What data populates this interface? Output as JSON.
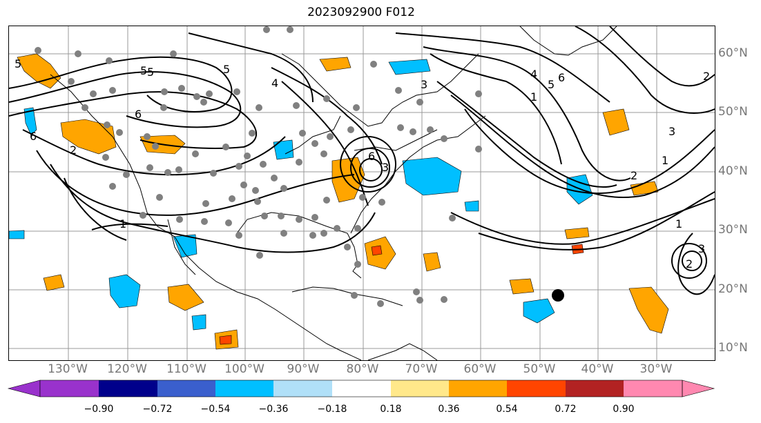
{
  "title": "2023092900 F012",
  "map": {
    "lat_labels": [
      "60°N",
      "50°N",
      "40°N",
      "30°N",
      "20°N",
      "10°N"
    ],
    "lon_labels": [
      "130°W",
      "120°W",
      "110°W",
      "100°W",
      "90°W",
      "80°W",
      "70°W",
      "60°W",
      "50°W",
      "40°W",
      "30°W"
    ],
    "contour_labels": [
      "5",
      "6",
      "4",
      "5",
      "6",
      "5",
      "4",
      "5",
      "6",
      "1",
      "2",
      "1",
      "2",
      "3",
      "1",
      "2",
      "3",
      "3",
      "2",
      "6",
      "1",
      "5",
      "3"
    ],
    "grid_color": "#999999",
    "contour_color": "#000000",
    "point_color": "#808080",
    "marker_color": "#000000"
  },
  "colorbar": {
    "ticks": [
      "−0.90",
      "−0.72",
      "−0.54",
      "−0.36",
      "−0.18",
      "0.18",
      "0.36",
      "0.54",
      "0.72",
      "0.90"
    ],
    "colors": [
      "#9932cc",
      "#00008b",
      "#3a5fcd",
      "#00bfff",
      "#b0e0f8",
      "#ffffff",
      "#ffe88a",
      "#ffa500",
      "#ff4500",
      "#b22222",
      "#ff88b0"
    ]
  }
}
